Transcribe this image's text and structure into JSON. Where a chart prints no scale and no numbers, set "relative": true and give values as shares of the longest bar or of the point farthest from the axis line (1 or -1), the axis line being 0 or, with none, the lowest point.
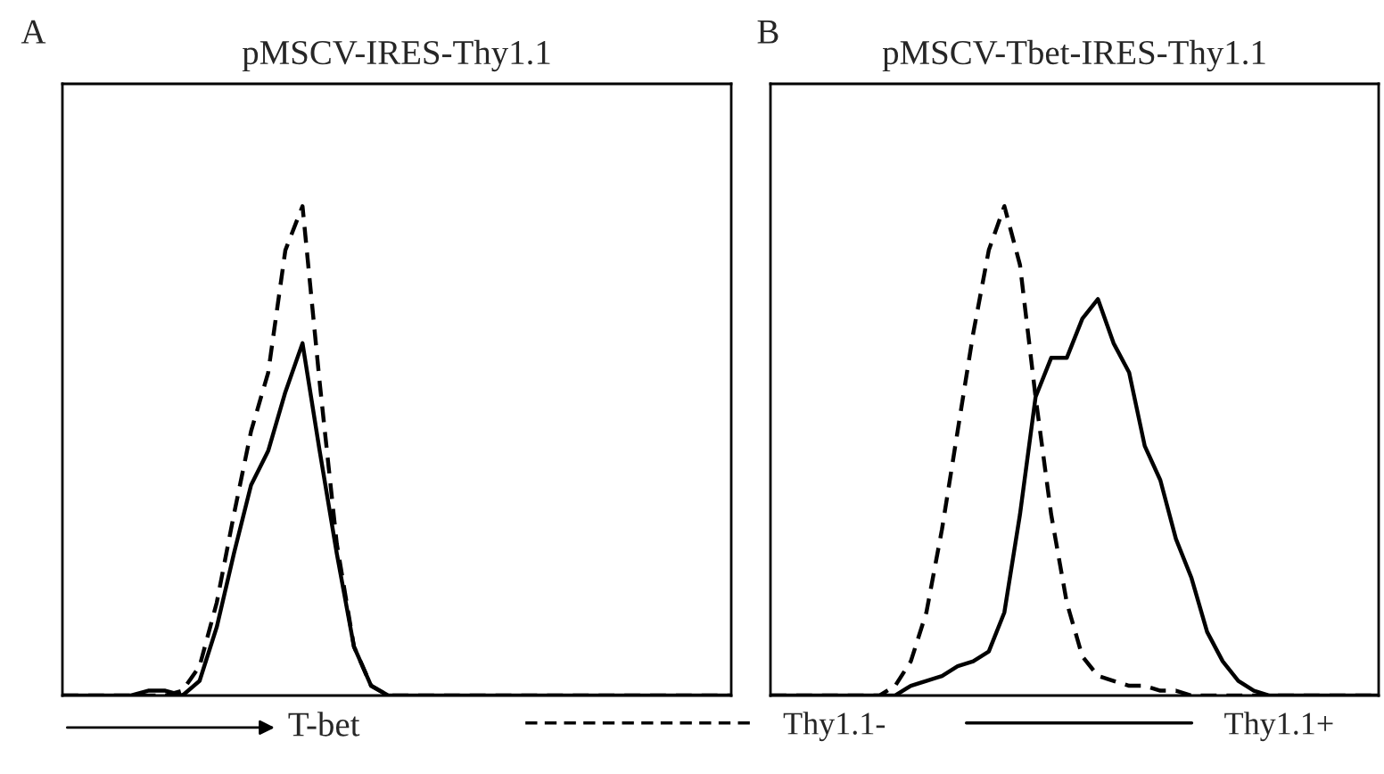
{
  "chart_data": [
    {
      "type": "line",
      "title": "pMSCV-IRES-Thy1.1",
      "xlabel": "T-bet",
      "relative": true,
      "legend": "bottom",
      "annotations": [
        "A"
      ],
      "categories": [
        null,
        null,
        null,
        null,
        null,
        null,
        null,
        null,
        null,
        null,
        null,
        null,
        null,
        null,
        null,
        null,
        null,
        null,
        null,
        null,
        null,
        null,
        null,
        null,
        null,
        null,
        null,
        null,
        null,
        null,
        null,
        null,
        null,
        null,
        null,
        null,
        null,
        null,
        null,
        null
      ],
      "series": [
        {
          "name": "Thy1.1-",
          "color": "#000000",
          "line_style": "dashed",
          "values": [
            0,
            0,
            0,
            0,
            0,
            0,
            0,
            0.01,
            0.06,
            0.19,
            0.37,
            0.54,
            0.66,
            0.91,
            1,
            0.64,
            0.31,
            0.1,
            0.02,
            0,
            0,
            0,
            0,
            0,
            0,
            0,
            0,
            0,
            0,
            0,
            0,
            0,
            0,
            0,
            0,
            0,
            0,
            0,
            0,
            0
          ]
        },
        {
          "name": "Thy1.1+",
          "color": "#000000",
          "line_style": "solid",
          "values": [
            0,
            0,
            0,
            0,
            0,
            0.01,
            0.01,
            0.0,
            0.03,
            0.14,
            0.29,
            0.43,
            0.5,
            0.62,
            0.72,
            0.5,
            0.29,
            0.1,
            0.02,
            0,
            0,
            0,
            0,
            0,
            0,
            0,
            0,
            0,
            0,
            0,
            0,
            0,
            0,
            0,
            0,
            0,
            0,
            0,
            0,
            0
          ]
        }
      ]
    },
    {
      "type": "line",
      "title": "pMSCV-Tbet-IRES-Thy1.1",
      "relative": true,
      "annotations": [
        "B"
      ],
      "categories": [
        null,
        null,
        null,
        null,
        null,
        null,
        null,
        null,
        null,
        null,
        null,
        null,
        null,
        null,
        null,
        null,
        null,
        null,
        null,
        null,
        null,
        null,
        null,
        null,
        null,
        null,
        null,
        null,
        null,
        null,
        null,
        null,
        null,
        null,
        null,
        null,
        null,
        null,
        null,
        null
      ],
      "series": [
        {
          "color": "#000000",
          "line_style": "dashed",
          "values": [
            0,
            0,
            0,
            0,
            0,
            0,
            0,
            0,
            0.02,
            0.07,
            0.17,
            0.34,
            0.54,
            0.74,
            0.91,
            1,
            0.88,
            0.61,
            0.37,
            0.19,
            0.08,
            0.04,
            0.03,
            0.02,
            0.02,
            0.01,
            0.01,
            0,
            0,
            0,
            0,
            0,
            0,
            0,
            0,
            0,
            0,
            0,
            0,
            0
          ]
        },
        {
          "color": "#000000",
          "line_style": "solid",
          "values": [
            0,
            0,
            0,
            0,
            0,
            0,
            0,
            0,
            0.0,
            0.02,
            0.03,
            0.04,
            0.06,
            0.07,
            0.09,
            0.17,
            0.37,
            0.61,
            0.69,
            0.69,
            0.77,
            0.81,
            0.72,
            0.66,
            0.51,
            0.44,
            0.32,
            0.24,
            0.13,
            0.07,
            0.03,
            0.01,
            0,
            0,
            0,
            0,
            0,
            0,
            0,
            0
          ]
        }
      ]
    }
  ]
}
